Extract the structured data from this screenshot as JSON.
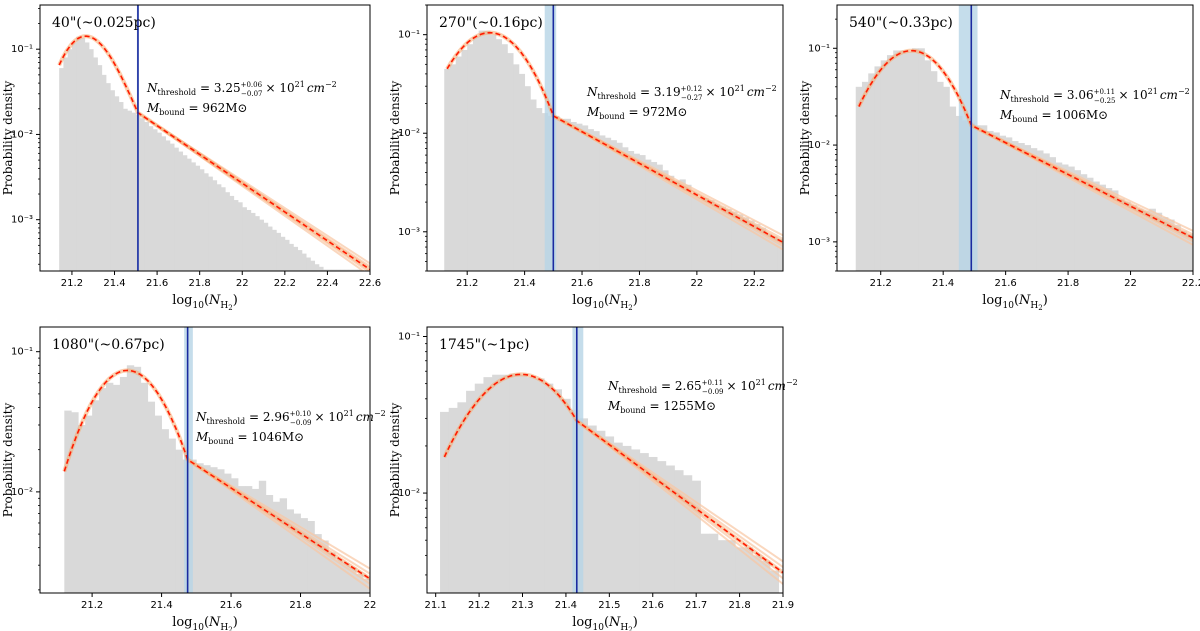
{
  "figure": {
    "common_ylabel": "Probability density",
    "common_xlabel": "log10(NH2)"
  },
  "colors": {
    "hist": "#d9d9d9",
    "fit": "#ff1a00",
    "fit_samples": "#f9c7a3",
    "threshold_line": "#1a2aa0",
    "threshold_band": "#b7d4e6"
  },
  "chart_data": [
    {
      "type": "bar",
      "title": "40\"(~0.025pc)",
      "xlabel": "log10(NH2)",
      "ylabel": "Probability density",
      "yscale": "log",
      "xlim": [
        21.05,
        22.6
      ],
      "ylim": [
        0.00025,
        0.33
      ],
      "xticks": [
        21.2,
        21.4,
        21.6,
        21.8,
        22.0,
        22.2,
        22.4,
        22.6
      ],
      "yticks": [
        0.001,
        0.01,
        0.1
      ],
      "ytick_labels": [
        "10^-3",
        "10^-2",
        "10^-1"
      ],
      "hist": {
        "x": [
          21.15,
          21.17,
          21.19,
          21.21,
          21.23,
          21.25,
          21.27,
          21.29,
          21.31,
          21.33,
          21.35,
          21.37,
          21.39,
          21.41,
          21.43,
          21.45,
          21.47,
          21.49,
          21.51,
          21.53,
          21.55,
          21.57,
          21.59,
          21.61,
          21.63,
          21.65,
          21.67,
          21.69,
          21.71,
          21.73,
          21.75,
          21.77,
          21.79,
          21.81,
          21.83,
          21.85,
          21.87,
          21.89,
          21.91,
          21.93,
          21.95,
          21.97,
          21.99,
          22.01,
          22.03,
          22.05,
          22.07,
          22.09,
          22.11,
          22.13,
          22.15,
          22.17,
          22.19,
          22.21,
          22.23,
          22.25,
          22.27,
          22.29,
          22.31,
          22.33,
          22.35,
          22.37,
          22.39,
          22.41,
          22.43,
          22.45,
          22.47,
          22.49,
          22.51,
          22.53,
          22.55
        ],
        "values": [
          0.06,
          0.08,
          0.1,
          0.12,
          0.14,
          0.135,
          0.12,
          0.1,
          0.08,
          0.065,
          0.05,
          0.04,
          0.033,
          0.028,
          0.024,
          0.02,
          0.019,
          0.018,
          0.017,
          0.0155,
          0.014,
          0.0125,
          0.0115,
          0.0105,
          0.0095,
          0.0085,
          0.0078,
          0.007,
          0.0063,
          0.0057,
          0.0052,
          0.0047,
          0.0043,
          0.0039,
          0.0035,
          0.0032,
          0.0029,
          0.0026,
          0.0024,
          0.0021,
          0.0019,
          0.0017,
          0.0016,
          0.0014,
          0.0013,
          0.0012,
          0.0011,
          0.001,
          0.00092,
          0.00083,
          0.00076,
          0.0007,
          0.00063,
          0.00058,
          0.00052,
          0.00048,
          0.00044,
          0.0004,
          0.00036,
          0.00033,
          0.0003,
          0.00028,
          0.00026,
          0.00026,
          0.00026,
          0.00026,
          0.00026,
          0.00026,
          0.00026,
          0.00026,
          0.00026
        ]
      },
      "fit": {
        "x_start": 21.14,
        "peak_x": 21.26,
        "peak_y": 0.14,
        "start_y": 0.065,
        "threshold_x": 21.51,
        "threshold_y": 0.018,
        "end_x": 22.6,
        "end_y": 0.00026
      },
      "threshold": {
        "x": 21.51,
        "band": [
          21.505,
          21.515
        ]
      },
      "annotation": {
        "line1": "Nthreshold = 3.25 +0.06 −0.07 × 10^21 cm^−2",
        "line2": "Mbound = 962M⊙",
        "n_sub": "threshold",
        "n_val": "3.25",
        "n_up": "+0.06",
        "n_dn": "−0.07",
        "n_unit": "× 10",
        "n_exp": "21",
        "n_cm": "cm",
        "n_cmexp": "−2",
        "m_sub": "bound",
        "m_val": "962M⊙"
      }
    },
    {
      "type": "bar",
      "title": "270\"(~0.16pc)",
      "xlabel": "log10(NH2)",
      "ylabel": "Probability density",
      "yscale": "log",
      "xlim": [
        21.06,
        22.3
      ],
      "ylim": [
        0.0004,
        0.2
      ],
      "xticks": [
        21.2,
        21.4,
        21.6,
        21.8,
        22.0,
        22.2
      ],
      "yticks": [
        0.001,
        0.01,
        0.1
      ],
      "ytick_labels": [
        "10^-3",
        "10^-2",
        "10^-1"
      ],
      "hist": {
        "x": [
          21.13,
          21.15,
          21.17,
          21.19,
          21.21,
          21.23,
          21.25,
          21.27,
          21.29,
          21.31,
          21.33,
          21.35,
          21.37,
          21.39,
          21.41,
          21.43,
          21.45,
          21.47,
          21.49,
          21.51,
          21.53,
          21.55,
          21.57,
          21.59,
          21.61,
          21.63,
          21.65,
          21.67,
          21.69,
          21.71,
          21.73,
          21.75,
          21.77,
          21.79,
          21.81,
          21.83,
          21.85,
          21.87,
          21.89,
          21.91,
          21.93,
          21.95,
          21.97,
          21.99,
          22.01,
          22.03,
          22.05,
          22.07,
          22.09,
          22.11,
          22.13,
          22.15,
          22.17,
          22.19,
          22.21,
          22.23,
          22.25,
          22.27,
          22.29
        ],
        "values": [
          0.045,
          0.05,
          0.06,
          0.07,
          0.08,
          0.095,
          0.11,
          0.11,
          0.1,
          0.09,
          0.08,
          0.065,
          0.05,
          0.04,
          0.03,
          0.022,
          0.018,
          0.016,
          0.015,
          0.015,
          0.014,
          0.014,
          0.013,
          0.0125,
          0.012,
          0.011,
          0.0105,
          0.0095,
          0.009,
          0.0085,
          0.008,
          0.0072,
          0.0066,
          0.0062,
          0.006,
          0.0054,
          0.0051,
          0.0048,
          0.0042,
          0.0037,
          0.0033,
          0.0034,
          0.003,
          0.0024,
          0.0022,
          0.0022,
          0.0021,
          0.0019,
          0.0018,
          0.0017,
          0.0016,
          0.0015,
          0.0014,
          0.0013,
          0.0012,
          0.0011,
          0.00095,
          0.0009,
          0.00085
        ]
      },
      "fit": {
        "x_start": 21.13,
        "peak_x": 21.28,
        "peak_y": 0.105,
        "start_y": 0.045,
        "threshold_x": 21.5,
        "threshold_y": 0.015,
        "end_x": 22.3,
        "end_y": 0.00078
      },
      "threshold": {
        "x": 21.5,
        "band": [
          21.47,
          21.51
        ]
      },
      "annotation": {
        "line1": "Nthreshold = 3.19 +0.12 −0.27 × 10^21 cm^−2",
        "line2": "Mbound = 972M⊙",
        "n_sub": "threshold",
        "n_val": "3.19",
        "n_up": "+0.12",
        "n_dn": "−0.27",
        "n_unit": "× 10",
        "n_exp": "21",
        "n_cm": "cm",
        "n_cmexp": "−2",
        "m_sub": "bound",
        "m_val": "972M⊙"
      }
    },
    {
      "type": "bar",
      "title": "540\"(~0.33pc)",
      "xlabel": "log10(NH2)",
      "ylabel": "Probability density",
      "yscale": "log",
      "xlim": [
        21.06,
        22.2
      ],
      "ylim": [
        0.0005,
        0.28
      ],
      "xticks": [
        21.2,
        21.4,
        21.6,
        21.8,
        22.0,
        22.2
      ],
      "yticks": [
        0.001,
        0.01,
        0.1
      ],
      "ytick_labels": [
        "10^-3",
        "10^-2",
        "10^-1"
      ],
      "hist": {
        "x": [
          21.13,
          21.15,
          21.17,
          21.19,
          21.21,
          21.23,
          21.25,
          21.27,
          21.29,
          21.31,
          21.33,
          21.35,
          21.37,
          21.39,
          21.41,
          21.43,
          21.45,
          21.47,
          21.49,
          21.51,
          21.53,
          21.55,
          21.57,
          21.59,
          21.61,
          21.63,
          21.65,
          21.67,
          21.69,
          21.71,
          21.73,
          21.75,
          21.77,
          21.79,
          21.81,
          21.83,
          21.85,
          21.87,
          21.89,
          21.91,
          21.93,
          21.95,
          21.97,
          21.99,
          22.01,
          22.03,
          22.05,
          22.07,
          22.09,
          22.11,
          22.13,
          22.15,
          22.17,
          22.19
        ],
        "values": [
          0.04,
          0.045,
          0.055,
          0.065,
          0.075,
          0.085,
          0.095,
          0.095,
          0.092,
          0.1,
          0.1,
          0.075,
          0.058,
          0.045,
          0.04,
          0.025,
          0.02,
          0.018,
          0.017,
          0.016,
          0.016,
          0.014,
          0.0135,
          0.0125,
          0.012,
          0.011,
          0.0105,
          0.01,
          0.0093,
          0.0088,
          0.0082,
          0.0075,
          0.0066,
          0.0063,
          0.006,
          0.0055,
          0.005,
          0.0046,
          0.0042,
          0.0039,
          0.0036,
          0.0034,
          0.0028,
          0.0026,
          0.0024,
          0.0022,
          0.0021,
          0.0022,
          0.002,
          0.0018,
          0.0017,
          0.0015,
          0.0013,
          0.0012
        ]
      },
      "fit": {
        "x_start": 21.13,
        "peak_x": 21.3,
        "peak_y": 0.095,
        "start_y": 0.025,
        "threshold_x": 21.49,
        "threshold_y": 0.016,
        "end_x": 22.2,
        "end_y": 0.0011
      },
      "threshold": {
        "x": 21.49,
        "band": [
          21.45,
          21.51
        ]
      },
      "annotation": {
        "line1": "Nthreshold = 3.06 +0.11 −0.25 × 10^21 cm^−2",
        "line2": "Mbound = 1006M⊙",
        "n_sub": "threshold",
        "n_val": "3.06",
        "n_up": "+0.11",
        "n_dn": "−0.25",
        "n_unit": "× 10",
        "n_exp": "21",
        "n_cm": "cm",
        "n_cmexp": "−2",
        "m_sub": "bound",
        "m_val": "1006M⊙"
      }
    },
    {
      "type": "bar",
      "title": "1080\"(~0.67pc)",
      "xlabel": "log10(NH2)",
      "ylabel": "Probability density",
      "yscale": "log",
      "xlim": [
        21.05,
        22.0
      ],
      "ylim": [
        0.0019,
        0.15
      ],
      "xticks": [
        21.2,
        21.4,
        21.6,
        21.8,
        22.0
      ],
      "yticks": [
        0.01,
        0.1
      ],
      "ytick_labels": [
        "10^-2",
        "10^-1"
      ],
      "hist": {
        "x": [
          21.13,
          21.15,
          21.17,
          21.19,
          21.21,
          21.23,
          21.25,
          21.27,
          21.29,
          21.31,
          21.33,
          21.35,
          21.37,
          21.39,
          21.41,
          21.43,
          21.45,
          21.47,
          21.49,
          21.51,
          21.53,
          21.55,
          21.57,
          21.59,
          21.61,
          21.63,
          21.65,
          21.67,
          21.69,
          21.71,
          21.73,
          21.75,
          21.77,
          21.79,
          21.81,
          21.83,
          21.85,
          21.87,
          21.89,
          21.91,
          21.93,
          21.95,
          21.97,
          21.99
        ],
        "values": [
          0.038,
          0.037,
          0.03,
          0.035,
          0.045,
          0.055,
          0.06,
          0.058,
          0.066,
          0.08,
          0.078,
          0.06,
          0.044,
          0.035,
          0.028,
          0.024,
          0.02,
          0.017,
          0.017,
          0.016,
          0.0155,
          0.015,
          0.0145,
          0.0135,
          0.0125,
          0.011,
          0.011,
          0.0105,
          0.012,
          0.0095,
          0.0085,
          0.009,
          0.0075,
          0.007,
          0.0065,
          0.0062,
          0.005,
          0.0045,
          0.0037,
          0.0033,
          0.0031,
          0.0029,
          0.0026,
          0.0024
        ]
      },
      "fit": {
        "x_start": 21.12,
        "peak_x": 21.3,
        "peak_y": 0.073,
        "start_y": 0.014,
        "threshold_x": 21.475,
        "threshold_y": 0.017,
        "end_x": 22.0,
        "end_y": 0.0024
      },
      "threshold": {
        "x": 21.475,
        "band": [
          21.465,
          21.49
        ]
      },
      "annotation": {
        "line1": "Nthreshold = 2.96 +0.10 −0.09 × 10^21 cm^−2",
        "line2": "Mbound = 1046M⊙",
        "n_sub": "threshold",
        "n_val": "2.96",
        "n_up": "+0.10",
        "n_dn": "−0.09",
        "n_unit": "× 10",
        "n_exp": "21",
        "n_cm": "cm",
        "n_cmexp": "−2",
        "m_sub": "bound",
        "m_val": "1046M⊙"
      }
    },
    {
      "type": "bar",
      "title": "1745\"(~1pc)",
      "xlabel": "log10(NH2)",
      "ylabel": "Probability density",
      "yscale": "log",
      "xlim": [
        21.08,
        21.9
      ],
      "ylim": [
        0.0023,
        0.115
      ],
      "xticks": [
        21.1,
        21.2,
        21.3,
        21.4,
        21.5,
        21.6,
        21.7,
        21.8,
        21.9
      ],
      "yticks": [
        0.01,
        0.1
      ],
      "ytick_labels": [
        "10^-2",
        "10^-1"
      ],
      "hist": {
        "x": [
          21.12,
          21.14,
          21.16,
          21.18,
          21.2,
          21.22,
          21.24,
          21.26,
          21.28,
          21.3,
          21.32,
          21.34,
          21.36,
          21.38,
          21.4,
          21.42,
          21.44,
          21.46,
          21.48,
          21.5,
          21.52,
          21.54,
          21.56,
          21.58,
          21.6,
          21.62,
          21.64,
          21.66,
          21.68,
          21.7,
          21.72,
          21.74,
          21.76,
          21.78,
          21.8,
          21.82,
          21.84,
          21.86,
          21.88
        ],
        "values": [
          0.033,
          0.035,
          0.038,
          0.045,
          0.05,
          0.055,
          0.057,
          0.057,
          0.058,
          0.057,
          0.055,
          0.054,
          0.05,
          0.046,
          0.04,
          0.034,
          0.03,
          0.027,
          0.025,
          0.023,
          0.021,
          0.02,
          0.019,
          0.018,
          0.017,
          0.016,
          0.015,
          0.014,
          0.013,
          0.012,
          0.0055,
          0.0055,
          0.005,
          0.005,
          0.0045,
          0.0045,
          0.004,
          0.0037,
          0.0032
        ]
      },
      "fit": {
        "x_start": 21.12,
        "peak_x": 21.3,
        "peak_y": 0.058,
        "start_y": 0.017,
        "threshold_x": 21.425,
        "threshold_y": 0.029,
        "end_x": 21.9,
        "end_y": 0.0031
      },
      "threshold": {
        "x": 21.425,
        "band": [
          21.415,
          21.44
        ]
      },
      "annotation": {
        "line1": "Nthreshold = 2.65 +0.11 −0.09 × 10^21 cm^−2",
        "line2": "Mbound = 1255M⊙",
        "n_sub": "threshold",
        "n_val": "2.65",
        "n_up": "+0.11",
        "n_dn": "−0.09",
        "n_unit": "× 10",
        "n_exp": "21",
        "n_cm": "cm",
        "n_cmexp": "−2",
        "m_sub": "bound",
        "m_val": "1255M⊙"
      }
    }
  ]
}
